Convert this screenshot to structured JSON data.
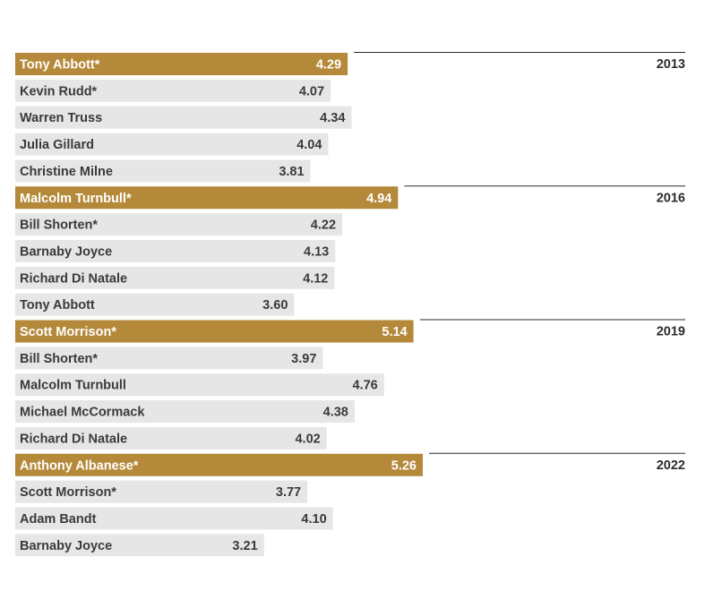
{
  "colors": {
    "winner_bar": "#b5893a",
    "other_bar": "#e6e6e6",
    "winner_text": "#ffffff",
    "other_text": "#3a3a3a",
    "year_text": "#2b2b2b",
    "rule": "#2b2b2b"
  },
  "chart_data": {
    "type": "bar",
    "orientation": "horizontal",
    "title": "",
    "xlabel": "",
    "ylabel": "",
    "grid": false,
    "value_axis_visible": false,
    "groups": [
      {
        "year": "2013",
        "items": [
          {
            "name": "Tony Abbott*",
            "value": 4.29,
            "label": "4.29",
            "winner": true
          },
          {
            "name": "Kevin Rudd*",
            "value": 4.07,
            "label": "4.07",
            "winner": false
          },
          {
            "name": "Warren Truss",
            "value": 4.34,
            "label": "4.34",
            "winner": false
          },
          {
            "name": "Julia Gillard",
            "value": 4.04,
            "label": "4.04",
            "winner": false
          },
          {
            "name": "Christine Milne",
            "value": 3.81,
            "label": "3.81",
            "winner": false
          }
        ]
      },
      {
        "year": "2016",
        "items": [
          {
            "name": "Malcolm Turnbull*",
            "value": 4.94,
            "label": "4.94",
            "winner": true
          },
          {
            "name": "Bill Shorten*",
            "value": 4.22,
            "label": "4.22",
            "winner": false
          },
          {
            "name": "Barnaby Joyce",
            "value": 4.13,
            "label": "4.13",
            "winner": false
          },
          {
            "name": "Richard Di Natale",
            "value": 4.12,
            "label": "4.12",
            "winner": false
          },
          {
            "name": "Tony Abbott",
            "value": 3.6,
            "label": "3.60",
            "winner": false
          }
        ]
      },
      {
        "year": "2019",
        "items": [
          {
            "name": "Scott Morrison*",
            "value": 5.14,
            "label": "5.14",
            "winner": true
          },
          {
            "name": "Bill Shorten*",
            "value": 3.97,
            "label": "3.97",
            "winner": false
          },
          {
            "name": "Malcolm Turnbull",
            "value": 4.76,
            "label": "4.76",
            "winner": false
          },
          {
            "name": "Michael McCormack",
            "value": 4.38,
            "label": "4.38",
            "winner": false
          },
          {
            "name": "Richard Di Natale",
            "value": 4.02,
            "label": "4.02",
            "winner": false
          }
        ]
      },
      {
        "year": "2022",
        "items": [
          {
            "name": "Anthony Albanese*",
            "value": 5.26,
            "label": "5.26",
            "winner": true
          },
          {
            "name": "Scott Morrison*",
            "value": 3.77,
            "label": "3.77",
            "winner": false
          },
          {
            "name": "Adam Bandt",
            "value": 4.1,
            "label": "4.10",
            "winner": false
          },
          {
            "name": "Barnaby Joyce",
            "value": 3.21,
            "label": "3.21",
            "winner": false
          }
        ]
      }
    ]
  }
}
